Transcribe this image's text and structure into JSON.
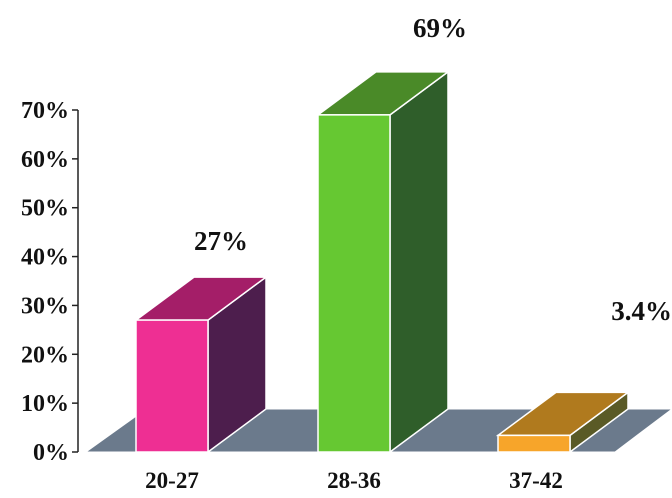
{
  "chart_data": {
    "type": "bar",
    "categories": [
      "20-27",
      "28-36",
      "37-42"
    ],
    "values": [
      27,
      69,
      3.4
    ],
    "data_labels": [
      "27%",
      "69%",
      "3.4%"
    ],
    "ylim": [
      0,
      70
    ],
    "yticks": [
      0,
      10,
      20,
      30,
      40,
      50,
      60,
      70
    ],
    "ytick_labels": [
      "0%",
      "10%",
      "20%",
      "30%",
      "40%",
      "50%",
      "60%",
      "70%"
    ],
    "title": "",
    "xlabel": "",
    "ylabel": "",
    "grid": false,
    "three_d": true,
    "bar_colors": [
      {
        "front": "#ee2f93",
        "top": "#a41e68",
        "side": "#4d1e4d"
      },
      {
        "front": "#66c832",
        "top": "#4a8a28",
        "side": "#2f5e2a"
      },
      {
        "front": "#f7a52a",
        "top": "#b07a1e",
        "side": "#5a5a26"
      }
    ],
    "floor_color": "#6b7a8c"
  }
}
